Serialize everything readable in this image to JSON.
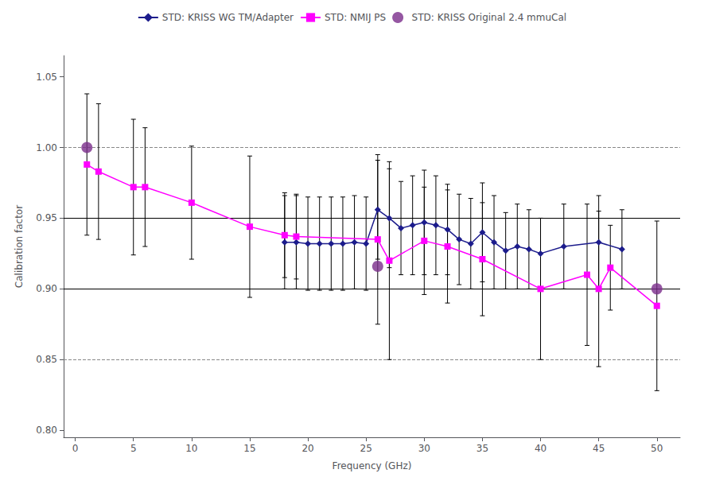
{
  "chart_data": {
    "type": "line",
    "title": "",
    "xlabel": "Frequency (GHz)",
    "ylabel": "Calibration factor",
    "xlim": [
      -1,
      52
    ],
    "ylim": [
      0.795,
      1.065
    ],
    "xticks": [
      0,
      5,
      10,
      15,
      20,
      25,
      30,
      35,
      40,
      45,
      50
    ],
    "yticks": [
      {
        "value": 0.8,
        "label": "0.80"
      },
      0.85,
      {
        "value": 0.9,
        "label": "0.90"
      },
      0.95,
      {
        "value": 1.0,
        "label": "1.00"
      },
      1.05
    ],
    "grid": false,
    "legend": "top",
    "series": [
      {
        "name": "STD: KRISS WG TM/Adapter",
        "type": "line",
        "marker": "diamond",
        "line_style": "solid",
        "color": "#1C1C8C",
        "x": [
          18,
          19,
          20,
          21,
          22,
          23,
          24,
          25,
          26,
          27,
          28,
          29,
          30,
          31,
          32,
          33,
          34,
          35,
          36,
          37,
          38,
          39,
          40,
          42,
          45,
          47
        ],
        "values": [
          0.933,
          0.933,
          0.932,
          0.932,
          0.932,
          0.932,
          0.933,
          0.932,
          0.956,
          0.95,
          0.943,
          0.945,
          0.947,
          0.945,
          0.942,
          0.935,
          0.932,
          0.94,
          0.933,
          0.927,
          0.93,
          0.928,
          0.925,
          0.93,
          0.933,
          0.928
        ],
        "yerr": [
          0.033,
          0.033,
          0.033,
          0.033,
          0.033,
          0.033,
          0.033,
          0.033,
          0.035,
          0.035,
          0.033,
          0.035,
          0.037,
          0.035,
          0.032,
          0.032,
          0.032,
          0.035,
          0.033,
          0.027,
          0.03,
          0.028,
          0.025,
          0.03,
          0.033,
          0.028
        ]
      },
      {
        "name": "STD: NMIJ PS",
        "type": "line",
        "marker": "square",
        "line_style": "solid",
        "color": "#FF00FF",
        "x": [
          1,
          2,
          5,
          6,
          10,
          15,
          18,
          19,
          26,
          27,
          30,
          32,
          35,
          40,
          44,
          45,
          46,
          50
        ],
        "values": [
          0.988,
          0.983,
          0.972,
          0.972,
          0.961,
          0.944,
          0.938,
          0.937,
          0.935,
          0.92,
          0.934,
          0.93,
          0.921,
          0.9,
          0.91,
          0.9,
          0.915,
          0.888
        ],
        "yerr": [
          0.05,
          0.048,
          0.048,
          0.042,
          0.04,
          0.05,
          0.03,
          0.03,
          0.06,
          0.07,
          0.038,
          0.04,
          0.04,
          0.05,
          0.05,
          0.055,
          0.03,
          0.06
        ]
      },
      {
        "name": "STD: KRISS Original 2.4 mmuCal",
        "type": "scatter",
        "marker": "circle",
        "color": "#7B2D8B",
        "x": [
          1,
          26,
          50
        ],
        "values": [
          1.0,
          0.916,
          0.9
        ]
      }
    ],
    "reference_lines": [
      {
        "y": 1.0,
        "line_style": "dashed",
        "color": "#888888"
      },
      {
        "y": 0.95,
        "line_style": "dashed",
        "color": "#888888"
      },
      {
        "y": 0.9,
        "line_style": "dashed",
        "color": "#888888"
      },
      {
        "y": 0.85,
        "line_style": "dashed",
        "color": "#888888"
      },
      {
        "y": 0.95,
        "line_style": "solid",
        "color": "#000000"
      },
      {
        "y": 0.9,
        "line_style": "solid",
        "color": "#000000"
      }
    ]
  }
}
